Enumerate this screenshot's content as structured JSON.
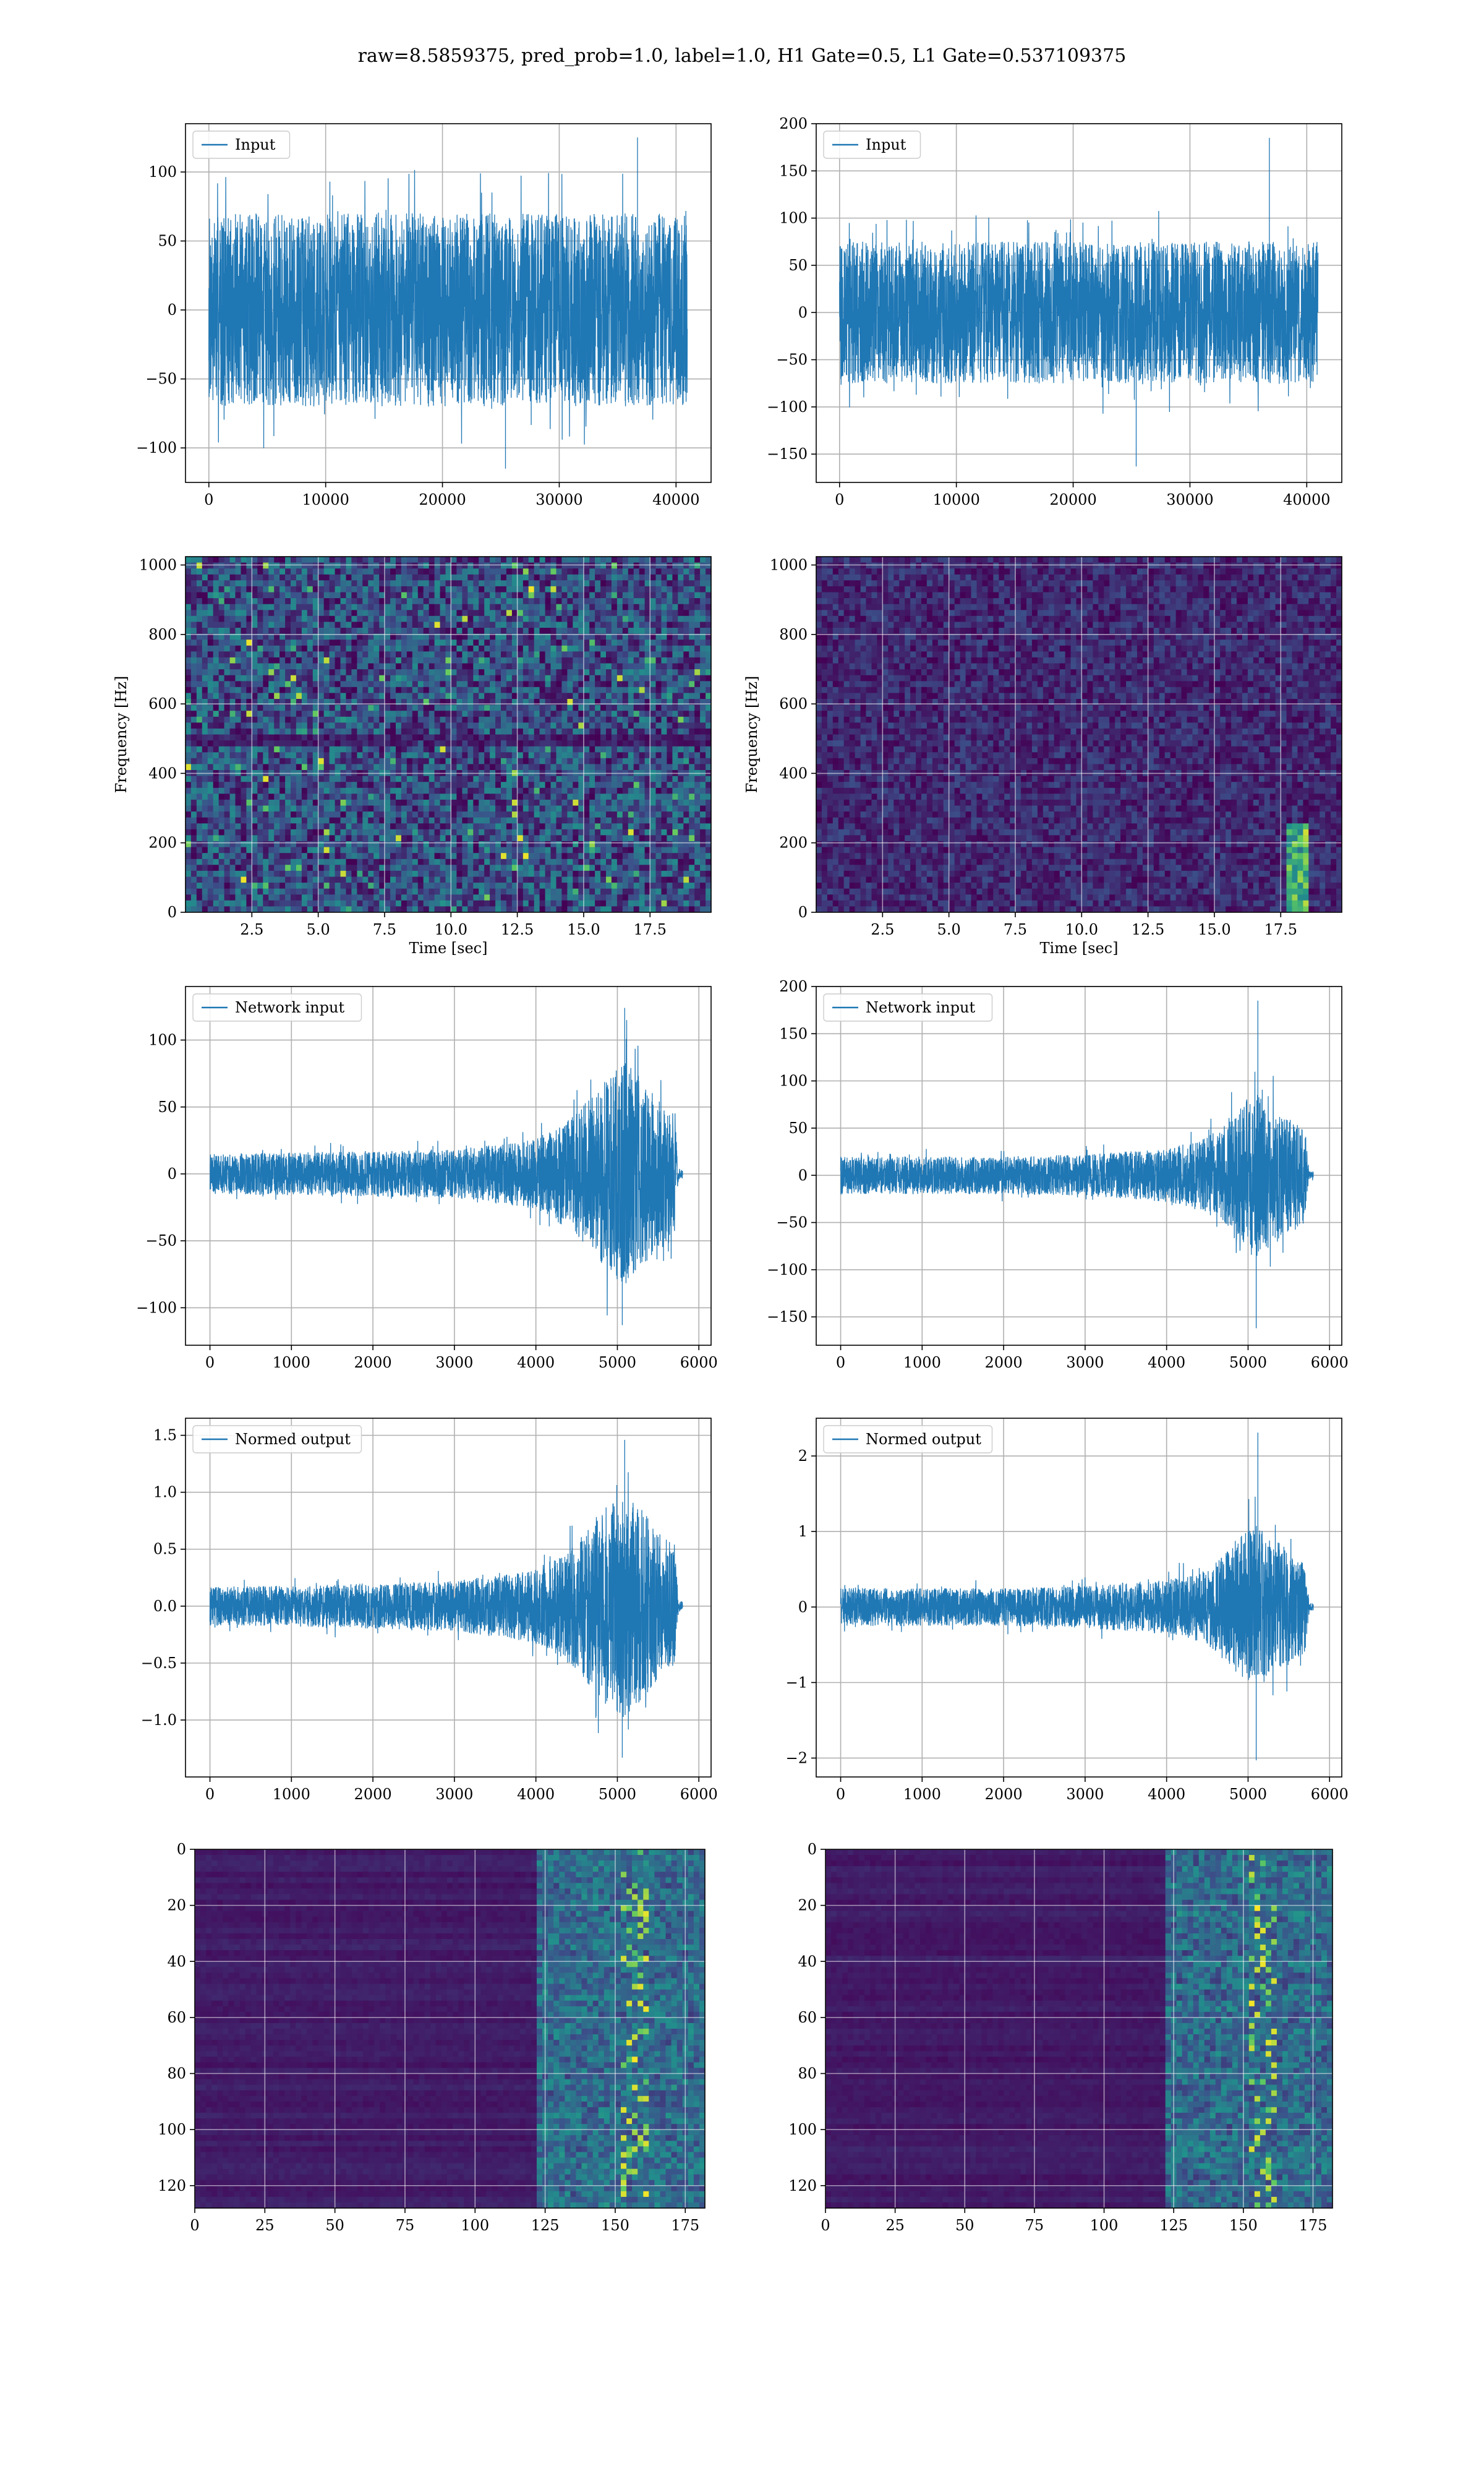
{
  "figure": {
    "title": "raw=8.5859375, pred_prob=1.0, label=1.0, H1 Gate=0.5, L1 Gate=0.537109375",
    "colors": {
      "line": "#1f77b4",
      "grid": "#b0b0b0",
      "axes": "#000000",
      "heat_low": "#440154",
      "heat_mid": "#21918c",
      "heat_high": "#fde725"
    }
  },
  "chart_data": [
    {
      "id": "h1-input",
      "type": "line",
      "title": "",
      "xlabel": "",
      "ylabel": "",
      "legend": {
        "label": "Input",
        "placement": "upper-left"
      },
      "grid": true,
      "xlim": [
        -2000,
        43000
      ],
      "ylim": [
        -125,
        135
      ],
      "xticks": [
        0,
        10000,
        20000,
        30000,
        40000
      ],
      "xtick_labels": [
        "0",
        "10000",
        "20000",
        "30000",
        "40000"
      ],
      "yticks": [
        -100,
        -50,
        0,
        50,
        100
      ],
      "ytick_labels": [
        "−100",
        "−50",
        "0",
        "50",
        "100"
      ],
      "series": [
        {
          "signal": "noise",
          "x_range": [
            0,
            40960
          ],
          "typical_envelope": [
            -70,
            70
          ],
          "min": -115,
          "max": 125,
          "max_at_x": 36700
        }
      ]
    },
    {
      "id": "l1-input",
      "type": "line",
      "title": "",
      "xlabel": "",
      "ylabel": "",
      "legend": {
        "label": "Input",
        "placement": "upper-left"
      },
      "grid": true,
      "xlim": [
        -2000,
        43000
      ],
      "ylim": [
        -180,
        200
      ],
      "xticks": [
        0,
        10000,
        20000,
        30000,
        40000
      ],
      "xtick_labels": [
        "0",
        "10000",
        "20000",
        "30000",
        "40000"
      ],
      "yticks": [
        -150,
        -100,
        -50,
        0,
        50,
        100,
        150,
        200
      ],
      "ytick_labels": [
        "−150",
        "−100",
        "−50",
        "0",
        "50",
        "100",
        "150",
        "200"
      ],
      "series": [
        {
          "signal": "noise",
          "x_range": [
            0,
            40960
          ],
          "typical_envelope": [
            -75,
            75
          ],
          "min": -163,
          "max": 185,
          "max_at_x": 36800
        }
      ]
    },
    {
      "id": "h1-spectrogram",
      "type": "heatmap",
      "title": "",
      "xlabel": "Time [sec]",
      "ylabel": "Frequency [Hz]",
      "grid": true,
      "xlim": [
        0,
        19.8
      ],
      "ylim": [
        0,
        1024
      ],
      "xticks": [
        2.5,
        5.0,
        7.5,
        10.0,
        12.5,
        15.0,
        17.5
      ],
      "xtick_labels": [
        "2.5",
        "5.0",
        "7.5",
        "10.0",
        "12.5",
        "15.0",
        "17.5"
      ],
      "yticks": [
        0,
        200,
        400,
        600,
        800,
        1000
      ],
      "ytick_labels": [
        "0",
        "200",
        "400",
        "600",
        "800",
        "1000"
      ],
      "texture": "bright speckled noise with horizontal dark bands near 500 Hz"
    },
    {
      "id": "l1-spectrogram",
      "type": "heatmap",
      "title": "",
      "xlabel": "Time [sec]",
      "ylabel": "Frequency [Hz]",
      "grid": true,
      "xlim": [
        0,
        19.8
      ],
      "ylim": [
        0,
        1024
      ],
      "xticks": [
        2.5,
        5.0,
        7.5,
        10.0,
        12.5,
        15.0,
        17.5
      ],
      "xtick_labels": [
        "2.5",
        "5.0",
        "7.5",
        "10.0",
        "12.5",
        "15.0",
        "17.5"
      ],
      "yticks": [
        0,
        200,
        400,
        600,
        800,
        1000
      ],
      "ytick_labels": [
        "0",
        "200",
        "400",
        "600",
        "800",
        "1000"
      ],
      "texture": "dim noise with a bright chirp near t=18 s below 250 Hz"
    },
    {
      "id": "h1-network-input",
      "type": "line",
      "title": "",
      "xlabel": "",
      "ylabel": "",
      "legend": {
        "label": "Network input",
        "placement": "upper-left"
      },
      "grid": true,
      "xlim": [
        -300,
        6150
      ],
      "ylim": [
        -128,
        140
      ],
      "xticks": [
        0,
        1000,
        2000,
        3000,
        4000,
        5000,
        6000
      ],
      "xtick_labels": [
        "0",
        "1000",
        "2000",
        "3000",
        "4000",
        "5000",
        "6000"
      ],
      "yticks": [
        -100,
        -50,
        0,
        50,
        100
      ],
      "ytick_labels": [
        "−100",
        "−50",
        "0",
        "50",
        "100"
      ],
      "series": [
        {
          "signal": "chirp",
          "envelope_x": [
            0,
            1000,
            2000,
            3000,
            3500,
            4000,
            4500,
            4700,
            4900,
            5100,
            5300,
            5500,
            5700,
            5750
          ],
          "envelope_y": [
            15,
            16,
            17,
            18,
            22,
            26,
            45,
            60,
            75,
            85,
            70,
            55,
            45,
            4
          ],
          "tail_end_x": 5800,
          "min": -113,
          "max": 124,
          "max_at_x": 5090,
          "min_at_x": 5060
        }
      ]
    },
    {
      "id": "l1-network-input",
      "type": "line",
      "title": "",
      "xlabel": "",
      "ylabel": "",
      "legend": {
        "label": "Network input",
        "placement": "upper-left"
      },
      "grid": true,
      "xlim": [
        -300,
        6150
      ],
      "ylim": [
        -180,
        200
      ],
      "xticks": [
        0,
        1000,
        2000,
        3000,
        4000,
        5000,
        6000
      ],
      "xtick_labels": [
        "0",
        "1000",
        "2000",
        "3000",
        "4000",
        "5000",
        "6000"
      ],
      "yticks": [
        -150,
        -100,
        -50,
        0,
        50,
        100,
        150,
        200
      ],
      "ytick_labels": [
        "−150",
        "−100",
        "−50",
        "0",
        "50",
        "100",
        "150",
        "200"
      ],
      "series": [
        {
          "signal": "chirp",
          "envelope_x": [
            0,
            1000,
            2000,
            3000,
            3500,
            4000,
            4500,
            4700,
            4900,
            5100,
            5300,
            5500,
            5700,
            5750
          ],
          "envelope_y": [
            20,
            20,
            20,
            22,
            25,
            28,
            40,
            55,
            75,
            90,
            75,
            60,
            50,
            4
          ],
          "tail_end_x": 5800,
          "min": -162,
          "max": 185,
          "max_at_x": 5120,
          "min_at_x": 5100
        }
      ]
    },
    {
      "id": "h1-normed-output",
      "type": "line",
      "title": "",
      "xlabel": "",
      "ylabel": "",
      "legend": {
        "label": "Normed output",
        "placement": "upper-left"
      },
      "grid": true,
      "xlim": [
        -300,
        6150
      ],
      "ylim": [
        -1.5,
        1.65
      ],
      "xticks": [
        0,
        1000,
        2000,
        3000,
        4000,
        5000,
        6000
      ],
      "xtick_labels": [
        "0",
        "1000",
        "2000",
        "3000",
        "4000",
        "5000",
        "6000"
      ],
      "yticks": [
        -1.0,
        -0.5,
        0.0,
        0.5,
        1.0,
        1.5
      ],
      "ytick_labels": [
        "−1.0",
        "−0.5",
        "0.0",
        "0.5",
        "1.0",
        "1.5"
      ],
      "series": [
        {
          "signal": "chirp",
          "envelope_x": [
            0,
            1000,
            2000,
            3000,
            3500,
            4000,
            4500,
            4700,
            4900,
            5100,
            5300,
            5500,
            5700,
            5750
          ],
          "envelope_y": [
            0.17,
            0.18,
            0.2,
            0.22,
            0.27,
            0.32,
            0.55,
            0.75,
            0.9,
            1.0,
            0.85,
            0.65,
            0.55,
            0.05
          ],
          "tail_end_x": 5800,
          "min": -1.33,
          "max": 1.46,
          "max_at_x": 5090,
          "min_at_x": 5060
        }
      ]
    },
    {
      "id": "l1-normed-output",
      "type": "line",
      "title": "",
      "xlabel": "",
      "ylabel": "",
      "legend": {
        "label": "Normed output",
        "placement": "upper-left"
      },
      "grid": true,
      "xlim": [
        -300,
        6150
      ],
      "ylim": [
        -2.25,
        2.5
      ],
      "xticks": [
        0,
        1000,
        2000,
        3000,
        4000,
        5000,
        6000
      ],
      "xtick_labels": [
        "0",
        "1000",
        "2000",
        "3000",
        "4000",
        "5000",
        "6000"
      ],
      "yticks": [
        -2,
        -1,
        0,
        1,
        2
      ],
      "ytick_labels": [
        "−2",
        "−1",
        "0",
        "1",
        "2"
      ],
      "series": [
        {
          "signal": "chirp",
          "envelope_x": [
            0,
            1000,
            2000,
            3000,
            3500,
            4000,
            4500,
            4700,
            4900,
            5100,
            5300,
            5500,
            5700,
            5750
          ],
          "envelope_y": [
            0.25,
            0.25,
            0.25,
            0.28,
            0.32,
            0.36,
            0.5,
            0.7,
            0.95,
            1.1,
            0.95,
            0.75,
            0.6,
            0.05
          ],
          "tail_end_x": 5800,
          "min": -2.03,
          "max": 2.31,
          "max_at_x": 5120,
          "min_at_x": 5100
        }
      ]
    },
    {
      "id": "h1-feature-map",
      "type": "heatmap",
      "title": "",
      "xlabel": "",
      "ylabel": "",
      "grid": true,
      "xlim": [
        0,
        182
      ],
      "ylim": [
        128,
        0
      ],
      "xticks": [
        0,
        25,
        50,
        75,
        100,
        125,
        150,
        175
      ],
      "xtick_labels": [
        "0",
        "25",
        "50",
        "75",
        "100",
        "125",
        "150",
        "175"
      ],
      "yticks": [
        0,
        20,
        40,
        60,
        80,
        100,
        120
      ],
      "ytick_labels": [
        "0",
        "20",
        "40",
        "60",
        "80",
        "100",
        "120"
      ],
      "texture": "dark rows with activation concentrated beyond column 120, bright spots near column 155"
    },
    {
      "id": "l1-feature-map",
      "type": "heatmap",
      "title": "",
      "xlabel": "",
      "ylabel": "",
      "grid": true,
      "xlim": [
        0,
        182
      ],
      "ylim": [
        128,
        0
      ],
      "xticks": [
        0,
        25,
        50,
        75,
        100,
        125,
        150,
        175
      ],
      "xtick_labels": [
        "0",
        "25",
        "50",
        "75",
        "100",
        "125",
        "150",
        "175"
      ],
      "yticks": [
        0,
        20,
        40,
        60,
        80,
        100,
        120
      ],
      "ytick_labels": [
        "0",
        "20",
        "40",
        "60",
        "80",
        "100",
        "120"
      ],
      "texture": "dark rows with activation concentrated beyond column 120, bright spots near column 155"
    }
  ]
}
